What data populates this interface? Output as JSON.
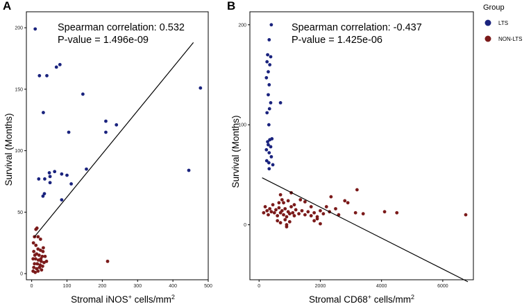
{
  "colors": {
    "LTS": "#1a237e",
    "NON-LTS": "#7b1a1a",
    "line": "#000000",
    "axis": "#000000"
  },
  "legend": {
    "title": "Group",
    "items": [
      {
        "key": "LTS",
        "label": "LTS",
        "icon": "circle-marker"
      },
      {
        "key": "NON-LTS",
        "label": "NON-LTS",
        "icon": "circle-marker"
      }
    ]
  },
  "chart_data": [
    {
      "panel": "A",
      "type": "scatter",
      "xlabel_main": "Stromal iNOS",
      "xlabel_sup": "+",
      "xlabel_tail": " cells/mm",
      "xlabel_sup2": "2",
      "ylabel": "Survival (Months)",
      "stat_line1": "Spearman correlation: 0.532",
      "stat_line2": "P-value = 1.496e-09",
      "xlim": [
        -15,
        500
      ],
      "ylim": [
        -5,
        213
      ],
      "xticks": [
        0,
        100,
        200,
        300,
        400,
        500
      ],
      "xtick_labels": [
        "0",
        "100",
        "200",
        "300",
        "400",
        "500"
      ],
      "yticks": [
        0,
        50,
        100,
        150,
        200
      ],
      "ytick_labels": [
        "0",
        "50",
        "100",
        "150",
        "200"
      ],
      "regression": {
        "x1": 8,
        "y1": 30,
        "x2": 458,
        "y2": 188
      },
      "series": [
        {
          "name": "LTS",
          "points": [
            [
              10,
              199
            ],
            [
              22,
              161
            ],
            [
              43,
              161
            ],
            [
              70,
              168
            ],
            [
              80,
              170
            ],
            [
              145,
              146
            ],
            [
              33,
              131
            ],
            [
              105,
              115
            ],
            [
              210,
              124
            ],
            [
              240,
              121
            ],
            [
              210,
              115
            ],
            [
              478,
              151
            ],
            [
              32,
              63
            ],
            [
              36,
              65
            ],
            [
              20,
              77
            ],
            [
              37,
              77
            ],
            [
              65,
              83
            ],
            [
              50,
              82
            ],
            [
              52,
              74
            ],
            [
              52,
              79
            ],
            [
              85,
              81
            ],
            [
              100,
              80
            ],
            [
              112,
              73
            ],
            [
              85,
              60
            ],
            [
              155,
              85
            ],
            [
              445,
              84
            ]
          ]
        },
        {
          "name": "NON-LTS",
          "points": [
            [
              12,
              36
            ],
            [
              15,
              37
            ],
            [
              8,
              30
            ],
            [
              18,
              30
            ],
            [
              25,
              28
            ],
            [
              5,
              25
            ],
            [
              12,
              23
            ],
            [
              18,
              20
            ],
            [
              25,
              19
            ],
            [
              32,
              18
            ],
            [
              6,
              18
            ],
            [
              14,
              16
            ],
            [
              21,
              15
            ],
            [
              30,
              14
            ],
            [
              38,
              14
            ],
            [
              4,
              12
            ],
            [
              11,
              12
            ],
            [
              19,
              11
            ],
            [
              27,
              10
            ],
            [
              35,
              9
            ],
            [
              42,
              10
            ],
            [
              8,
              8
            ],
            [
              16,
              8
            ],
            [
              24,
              7
            ],
            [
              31,
              6
            ],
            [
              6,
              5
            ],
            [
              14,
              4
            ],
            [
              22,
              5
            ],
            [
              28,
              3
            ],
            [
              4,
              2
            ],
            [
              10,
              1
            ],
            [
              18,
              2
            ],
            [
              26,
              12
            ],
            [
              33,
              21
            ],
            [
              9,
              15
            ],
            [
              215,
              10
            ]
          ]
        }
      ]
    },
    {
      "panel": "B",
      "type": "scatter",
      "xlabel_main": "Stromal CD68",
      "xlabel_sup": "+",
      "xlabel_tail": " cells/mm",
      "xlabel_sup2": "2",
      "ylabel": "Survival (Months)",
      "stat_line1": "Spearman correlation: -0.437",
      "stat_line2": "P-value = 1.425e-06",
      "xlim": [
        -300,
        7000
      ],
      "ylim": [
        -55,
        213
      ],
      "xticks": [
        0,
        2000,
        4000,
        6000
      ],
      "xtick_labels": [
        "0",
        "2000",
        "4000",
        "6000"
      ],
      "yticks": [
        0,
        100,
        200
      ],
      "ytick_labels": [
        "0",
        "100",
        "200"
      ],
      "regression": {
        "x1": 100,
        "y1": 47,
        "x2": 6820,
        "y2": -57
      },
      "series": [
        {
          "name": "LTS",
          "points": [
            [
              400,
              200
            ],
            [
              330,
              185
            ],
            [
              280,
              170
            ],
            [
              380,
              168
            ],
            [
              260,
              163
            ],
            [
              350,
              160
            ],
            [
              300,
              153
            ],
            [
              240,
              147
            ],
            [
              330,
              140
            ],
            [
              300,
              130
            ],
            [
              380,
              122
            ],
            [
              340,
              116
            ],
            [
              260,
              112
            ],
            [
              320,
              100
            ],
            [
              700,
              122
            ],
            [
              350,
              85
            ],
            [
              280,
              83
            ],
            [
              420,
              86
            ],
            [
              300,
              80
            ],
            [
              380,
              78
            ],
            [
              240,
              75
            ],
            [
              330,
              72
            ],
            [
              400,
              68
            ],
            [
              250,
              64
            ],
            [
              320,
              62
            ],
            [
              450,
              60
            ],
            [
              330,
              56
            ]
          ]
        },
        {
          "name": "NON-LTS",
          "points": [
            [
              150,
              12
            ],
            [
              200,
              18
            ],
            [
              260,
              14
            ],
            [
              300,
              10
            ],
            [
              350,
              16
            ],
            [
              400,
              13
            ],
            [
              450,
              20
            ],
            [
              500,
              12
            ],
            [
              550,
              15
            ],
            [
              600,
              9
            ],
            [
              650,
              17
            ],
            [
              700,
              12
            ],
            [
              750,
              14
            ],
            [
              800,
              10
            ],
            [
              850,
              16
            ],
            [
              900,
              8
            ],
            [
              950,
              13
            ],
            [
              1000,
              11
            ],
            [
              1050,
              18
            ],
            [
              1100,
              12
            ],
            [
              1150,
              9
            ],
            [
              1200,
              15
            ],
            [
              1300,
              11
            ],
            [
              1400,
              14
            ],
            [
              1500,
              10
            ],
            [
              1600,
              13
            ],
            [
              1700,
              9
            ],
            [
              1800,
              12
            ],
            [
              1900,
              8
            ],
            [
              2000,
              14
            ],
            [
              2100,
              11
            ],
            [
              2200,
              18
            ],
            [
              2300,
              13
            ],
            [
              2600,
              10
            ],
            [
              700,
              30
            ],
            [
              750,
              25
            ],
            [
              800,
              22
            ],
            [
              1050,
              32
            ],
            [
              1350,
              25
            ],
            [
              2350,
              28
            ],
            [
              2800,
              24
            ],
            [
              3200,
              35
            ],
            [
              3150,
              12
            ],
            [
              3400,
              11
            ],
            [
              4100,
              13
            ],
            [
              4500,
              12
            ],
            [
              6750,
              10
            ],
            [
              600,
              4
            ],
            [
              700,
              2
            ],
            [
              850,
              5
            ],
            [
              900,
              0
            ],
            [
              1000,
              3
            ],
            [
              1800,
              4
            ],
            [
              1900,
              6
            ],
            [
              2000,
              1
            ],
            [
              650,
              22
            ],
            [
              950,
              24
            ],
            [
              1150,
              20
            ],
            [
              1500,
              23
            ],
            [
              1700,
              18
            ],
            [
              2500,
              16
            ],
            [
              2900,
              22
            ],
            [
              900,
              -2
            ]
          ]
        }
      ]
    }
  ]
}
